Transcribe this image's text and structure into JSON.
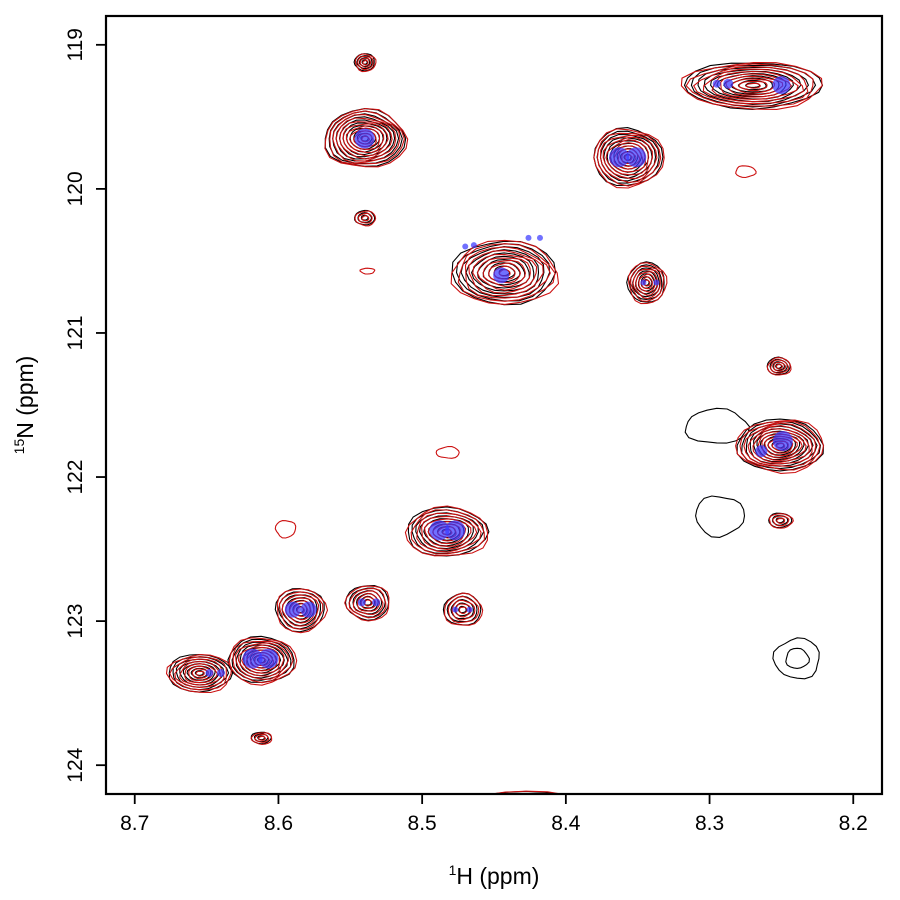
{
  "chart_data": {
    "type": "contour",
    "xlabel": {
      "superscript": "1",
      "text": "H (ppm)"
    },
    "ylabel": {
      "superscript": "15",
      "text": "N (ppm)"
    },
    "xlim": [
      8.72,
      8.18
    ],
    "ylim": [
      118.8,
      124.2
    ],
    "x_reversed": true,
    "y_reversed": true,
    "x_ticks": [
      8.7,
      8.6,
      8.5,
      8.4,
      8.3,
      8.2
    ],
    "x_tick_labels": [
      "8.7",
      "8.6",
      "8.5",
      "8.4",
      "8.3",
      "8.2"
    ],
    "y_ticks": [
      119,
      120,
      121,
      122,
      123,
      124
    ],
    "y_tick_labels": [
      "119",
      "120",
      "121",
      "122",
      "123",
      "124"
    ],
    "grid": false,
    "colors": {
      "spectrum_a": "#000000",
      "spectrum_b": "#cc1111",
      "markers": "#3a3aff"
    },
    "peaks": [
      {
        "x": 8.54,
        "y": 119.65,
        "sx": 0.028,
        "sy": 0.2,
        "levels": 11
      },
      {
        "x": 8.357,
        "y": 119.78,
        "sx": 0.024,
        "sy": 0.2,
        "levels": 10
      },
      {
        "x": 8.27,
        "y": 119.28,
        "sx": 0.048,
        "sy": 0.16,
        "levels": 10
      },
      {
        "x": 8.443,
        "y": 120.58,
        "sx": 0.036,
        "sy": 0.22,
        "levels": 10
      },
      {
        "x": 8.344,
        "y": 120.65,
        "sx": 0.013,
        "sy": 0.14,
        "levels": 7
      },
      {
        "x": 8.251,
        "y": 121.78,
        "sx": 0.03,
        "sy": 0.18,
        "levels": 11
      },
      {
        "x": 8.483,
        "y": 122.38,
        "sx": 0.028,
        "sy": 0.17,
        "levels": 9
      },
      {
        "x": 8.585,
        "y": 122.92,
        "sx": 0.017,
        "sy": 0.15,
        "levels": 7
      },
      {
        "x": 8.538,
        "y": 122.87,
        "sx": 0.015,
        "sy": 0.12,
        "levels": 6
      },
      {
        "x": 8.472,
        "y": 122.92,
        "sx": 0.013,
        "sy": 0.11,
        "levels": 5
      },
      {
        "x": 8.612,
        "y": 123.27,
        "sx": 0.023,
        "sy": 0.16,
        "levels": 9
      },
      {
        "x": 8.655,
        "y": 123.36,
        "sx": 0.022,
        "sy": 0.13,
        "levels": 8
      },
      {
        "x": 8.428,
        "y": 124.3,
        "sx": 0.045,
        "sy": 0.12,
        "levels": 5
      },
      {
        "x": 8.54,
        "y": 119.12,
        "sx": 0.007,
        "sy": 0.06,
        "levels": 4
      },
      {
        "x": 8.54,
        "y": 120.2,
        "sx": 0.007,
        "sy": 0.05,
        "levels": 3
      },
      {
        "x": 8.252,
        "y": 121.23,
        "sx": 0.008,
        "sy": 0.06,
        "levels": 4
      },
      {
        "x": 8.251,
        "y": 122.3,
        "sx": 0.008,
        "sy": 0.05,
        "levels": 3
      },
      {
        "x": 8.612,
        "y": 123.81,
        "sx": 0.007,
        "sy": 0.04,
        "levels": 3
      }
    ],
    "minor_contours": [
      {
        "x": 8.295,
        "y": 121.65,
        "rx": 0.022,
        "ry": 0.12,
        "color": "spectrum_a"
      },
      {
        "x": 8.293,
        "y": 122.27,
        "rx": 0.017,
        "ry": 0.14,
        "color": "spectrum_a"
      },
      {
        "x": 8.239,
        "y": 123.26,
        "rx": 0.016,
        "ry": 0.14,
        "color": "spectrum_a"
      },
      {
        "x": 8.239,
        "y": 123.26,
        "rx": 0.008,
        "ry": 0.07,
        "color": "spectrum_a"
      },
      {
        "x": 8.595,
        "y": 122.36,
        "rx": 0.007,
        "ry": 0.06,
        "color": "spectrum_b"
      },
      {
        "x": 8.482,
        "y": 121.83,
        "rx": 0.008,
        "ry": 0.04,
        "color": "spectrum_b"
      },
      {
        "x": 8.275,
        "y": 119.88,
        "rx": 0.007,
        "ry": 0.04,
        "color": "spectrum_b"
      },
      {
        "x": 8.538,
        "y": 120.57,
        "rx": 0.005,
        "ry": 0.02,
        "color": "spectrum_b"
      }
    ],
    "markers": [
      {
        "x": 8.54,
        "y": 119.65,
        "r": 10
      },
      {
        "x": 8.363,
        "y": 119.78,
        "r": 10
      },
      {
        "x": 8.351,
        "y": 119.78,
        "r": 10
      },
      {
        "x": 8.295,
        "y": 119.27,
        "r": 4
      },
      {
        "x": 8.287,
        "y": 119.27,
        "r": 5
      },
      {
        "x": 8.25,
        "y": 119.28,
        "r": 9
      },
      {
        "x": 8.445,
        "y": 120.6,
        "r": 8
      },
      {
        "x": 8.47,
        "y": 120.4,
        "r": 3
      },
      {
        "x": 8.464,
        "y": 120.39,
        "r": 3
      },
      {
        "x": 8.426,
        "y": 120.34,
        "r": 3
      },
      {
        "x": 8.418,
        "y": 120.34,
        "r": 3
      },
      {
        "x": 8.346,
        "y": 120.65,
        "r": 3
      },
      {
        "x": 8.337,
        "y": 120.65,
        "r": 3
      },
      {
        "x": 8.249,
        "y": 121.75,
        "r": 10
      },
      {
        "x": 8.264,
        "y": 121.82,
        "r": 6
      },
      {
        "x": 8.488,
        "y": 122.37,
        "r": 10
      },
      {
        "x": 8.477,
        "y": 122.37,
        "r": 10
      },
      {
        "x": 8.59,
        "y": 122.92,
        "r": 8
      },
      {
        "x": 8.579,
        "y": 122.92,
        "r": 8
      },
      {
        "x": 8.542,
        "y": 122.87,
        "r": 4
      },
      {
        "x": 8.532,
        "y": 122.87,
        "r": 4
      },
      {
        "x": 8.477,
        "y": 122.92,
        "r": 3
      },
      {
        "x": 8.467,
        "y": 122.92,
        "r": 3
      },
      {
        "x": 8.618,
        "y": 123.26,
        "r": 10
      },
      {
        "x": 8.607,
        "y": 123.26,
        "r": 10
      },
      {
        "x": 8.648,
        "y": 123.36,
        "r": 4
      },
      {
        "x": 8.64,
        "y": 123.36,
        "r": 4
      }
    ]
  }
}
